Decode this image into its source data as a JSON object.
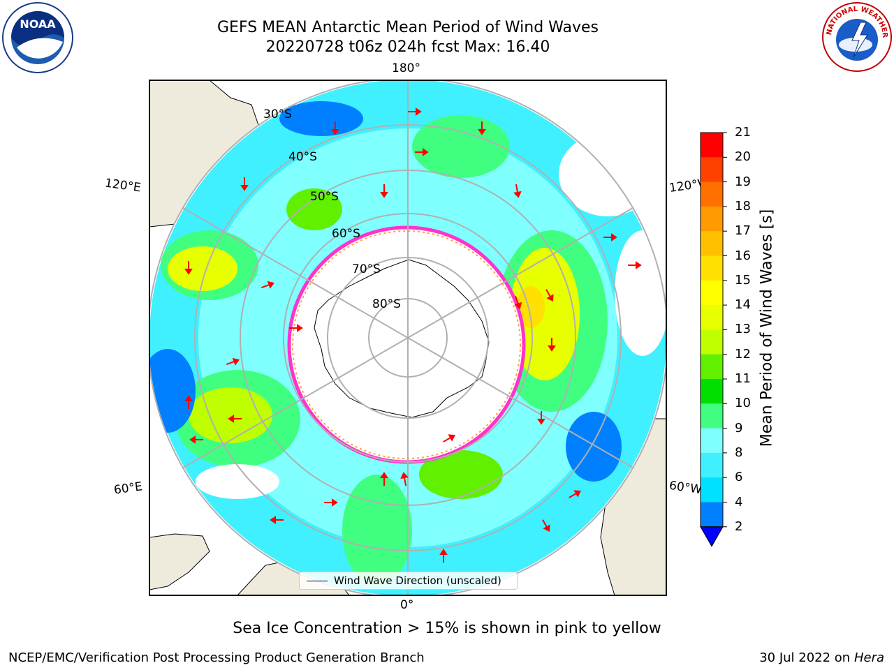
{
  "title": {
    "line1": "GEFS MEAN Antarctic Mean Period of Wind Waves",
    "line2": "20220728 t06z 024h fcst   Max: 16.40"
  },
  "logos": {
    "left": {
      "icon": "noaa-logo",
      "text": "NOAA"
    },
    "right": {
      "icon": "nws-logo",
      "text": "NATIONAL WEATHER SERVICE"
    }
  },
  "map": {
    "projection": "south-polar-stereographic",
    "lon_labels": {
      "top": "180°",
      "bottom": "0°",
      "upper_left": "120°E",
      "upper_right": "120°W",
      "lower_left": "60°E",
      "lower_right": "60°W"
    },
    "lat_labels": [
      "30°S",
      "40°S",
      "50°S",
      "60°S",
      "70°S",
      "80°S"
    ],
    "colors": {
      "land": "#efebdc",
      "ice_edge": "#ff33cc",
      "arrow": "#ff0000",
      "grid": "#b0b0b0"
    }
  },
  "legend": {
    "label": "Wind Wave Direction (unscaled)"
  },
  "colorbar": {
    "title": "Mean Period of Wind Waves [s]",
    "ticks": [
      "2",
      "4",
      "6",
      "8",
      "9",
      "10",
      "11",
      "12",
      "13",
      "14",
      "15",
      "16",
      "17",
      "18",
      "19",
      "20",
      "21"
    ],
    "colors": [
      "#0080ff",
      "#00e0ff",
      "#40f0ff",
      "#80ffff",
      "#40ff80",
      "#00e000",
      "#60f000",
      "#c0ff00",
      "#e8ff00",
      "#ffff00",
      "#ffe000",
      "#ffc000",
      "#ff9a00",
      "#ff7000",
      "#ff4000",
      "#ff0000"
    ],
    "extend_color": "#0000ff"
  },
  "caption": "Sea Ice Concentration > 15% is shown in pink to yellow",
  "footer": {
    "left": "NCEP/EMC/Verification Post Processing Product Generation Branch",
    "right_date": "30 Jul 2022 on ",
    "right_host": "Hera"
  }
}
